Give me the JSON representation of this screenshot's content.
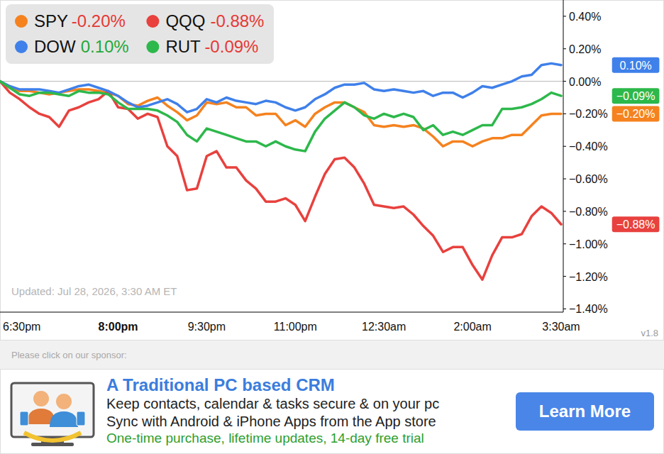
{
  "chart_data": {
    "type": "line",
    "categories": [
      "6:30pm",
      null,
      null,
      null,
      null,
      null,
      null,
      null,
      null,
      null,
      null,
      null,
      "8:00pm",
      null,
      null,
      null,
      null,
      null,
      null,
      null,
      null,
      "9:30pm",
      null,
      null,
      null,
      null,
      null,
      null,
      null,
      null,
      "11:00pm",
      null,
      null,
      null,
      null,
      null,
      null,
      null,
      null,
      "12:30am",
      null,
      null,
      null,
      null,
      null,
      null,
      null,
      null,
      "2:00am",
      null,
      null,
      null,
      null,
      null,
      null,
      null,
      null,
      "3:30am"
    ],
    "series": [
      {
        "name": "SPY",
        "color": "#f5821f",
        "legend_label": "-0.20%",
        "end_label": "−0.20%",
        "values": [
          0,
          -0.04,
          -0.06,
          -0.06,
          -0.07,
          -0.08,
          -0.07,
          -0.06,
          -0.05,
          -0.05,
          -0.06,
          -0.07,
          -0.09,
          -0.14,
          -0.15,
          -0.12,
          -0.1,
          -0.15,
          -0.19,
          -0.24,
          -0.21,
          -0.13,
          -0.14,
          -0.13,
          -0.16,
          -0.16,
          -0.21,
          -0.2,
          -0.2,
          -0.27,
          -0.24,
          -0.28,
          -0.2,
          -0.16,
          -0.13,
          -0.13,
          -0.16,
          -0.19,
          -0.27,
          -0.28,
          -0.27,
          -0.28,
          -0.27,
          -0.29,
          -0.34,
          -0.4,
          -0.37,
          -0.37,
          -0.4,
          -0.37,
          -0.35,
          -0.35,
          -0.33,
          -0.33,
          -0.27,
          -0.21,
          -0.2,
          -0.2
        ]
      },
      {
        "name": "QQQ",
        "color": "#e8413e",
        "legend_label": "-0.88%",
        "end_label": "−0.88%",
        "values": [
          0,
          -0.07,
          -0.11,
          -0.16,
          -0.2,
          -0.22,
          -0.28,
          -0.18,
          -0.16,
          -0.13,
          -0.11,
          -0.06,
          -0.16,
          -0.17,
          -0.23,
          -0.2,
          -0.22,
          -0.4,
          -0.46,
          -0.67,
          -0.66,
          -0.46,
          -0.43,
          -0.53,
          -0.53,
          -0.61,
          -0.66,
          -0.74,
          -0.74,
          -0.72,
          -0.76,
          -0.86,
          -0.71,
          -0.57,
          -0.48,
          -0.47,
          -0.53,
          -0.63,
          -0.76,
          -0.77,
          -0.78,
          -0.77,
          -0.82,
          -0.89,
          -0.95,
          -1.05,
          -1.02,
          -1.02,
          -1.13,
          -1.22,
          -1.07,
          -0.96,
          -0.96,
          -0.94,
          -0.83,
          -0.77,
          -0.81,
          -0.88
        ]
      },
      {
        "name": "DOW",
        "color": "#3f80ea",
        "legend_label": "0.10%",
        "end_label": "0.10%",
        "values": [
          0,
          -0.03,
          -0.05,
          -0.05,
          -0.05,
          -0.06,
          -0.07,
          -0.05,
          -0.03,
          -0.02,
          -0.04,
          -0.06,
          -0.09,
          -0.13,
          -0.16,
          -0.15,
          -0.13,
          -0.11,
          -0.14,
          -0.19,
          -0.17,
          -0.11,
          -0.13,
          -0.1,
          -0.12,
          -0.13,
          -0.14,
          -0.12,
          -0.13,
          -0.16,
          -0.18,
          -0.16,
          -0.11,
          -0.08,
          -0.04,
          -0.02,
          -0.02,
          -0.01,
          -0.05,
          -0.06,
          -0.05,
          -0.06,
          -0.07,
          -0.06,
          -0.09,
          -0.07,
          -0.07,
          -0.1,
          -0.07,
          -0.03,
          -0.04,
          -0.02,
          0,
          0.03,
          0.04,
          0.1,
          0.11,
          0.1
        ]
      },
      {
        "name": "RUT",
        "color": "#2db84b",
        "legend_label": "-0.09%",
        "end_label": "−0.09%",
        "values": [
          0,
          -0.04,
          -0.08,
          -0.09,
          -0.07,
          -0.07,
          -0.08,
          -0.09,
          -0.06,
          -0.07,
          -0.07,
          -0.08,
          -0.13,
          -0.17,
          -0.17,
          -0.17,
          -0.18,
          -0.21,
          -0.25,
          -0.33,
          -0.37,
          -0.29,
          -0.31,
          -0.33,
          -0.35,
          -0.37,
          -0.37,
          -0.4,
          -0.37,
          -0.4,
          -0.42,
          -0.43,
          -0.31,
          -0.23,
          -0.18,
          -0.13,
          -0.16,
          -0.21,
          -0.23,
          -0.2,
          -0.22,
          -0.2,
          -0.22,
          -0.3,
          -0.27,
          -0.33,
          -0.31,
          -0.33,
          -0.3,
          -0.27,
          -0.27,
          -0.17,
          -0.17,
          -0.16,
          -0.14,
          -0.11,
          -0.07,
          -0.09
        ]
      }
    ],
    "ylim": [
      -1.42,
      0.5
    ],
    "yticks": [
      {
        "value": 0.4,
        "label": "0.40%"
      },
      {
        "value": 0.2,
        "label": "0.20%"
      },
      {
        "value": 0,
        "label": "0.00%"
      },
      {
        "value": -0.2,
        "label": "−0.20%"
      },
      {
        "value": -0.4,
        "label": "−0.40%"
      },
      {
        "value": -0.6,
        "label": "−0.60%"
      },
      {
        "value": -0.8,
        "label": "−0.80%"
      },
      {
        "value": -1.0,
        "label": "−1.00%"
      },
      {
        "value": -1.2,
        "label": "−1.20%"
      },
      {
        "value": -1.4,
        "label": "−1.40%"
      }
    ],
    "baseline": 0,
    "grid": false,
    "legend": "top-left",
    "annotation": "Updated: Jul 28, 2026, 3:30 AM ET",
    "version": "v1.8"
  },
  "sponsor": {
    "prompt": "Please click on our sponsor:",
    "title": "A Traditional PC based CRM",
    "lines": [
      "Keep contacts, calendar & tasks secure & on your pc",
      "Sync with Android & iPhone Apps from the App store"
    ],
    "highlight": "One-time purchase, lifetime updates, 14-day free trial",
    "button": "Learn More"
  }
}
